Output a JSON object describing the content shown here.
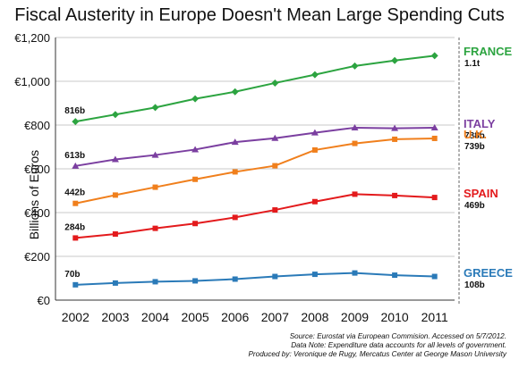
{
  "chart_data": {
    "type": "line",
    "title": "Fiscal Austerity in Europe Doesn't Mean Large Spending Cuts",
    "ylabel": "Billions of Euros",
    "xlabel": "",
    "x": [
      "2002",
      "2003",
      "2004",
      "2005",
      "2006",
      "2007",
      "2008",
      "2009",
      "2010",
      "2011"
    ],
    "ylim": [
      0,
      1200
    ],
    "yticks": [
      0,
      200,
      400,
      600,
      800,
      1000,
      1200
    ],
    "ytick_labels": [
      "€0",
      "€200",
      "€400",
      "€600",
      "€800",
      "€1,000",
      "€1,200"
    ],
    "grid": true,
    "series": [
      {
        "name": "FRANCE",
        "color": "#2ca440",
        "marker": "diamond",
        "values": [
          816,
          848,
          880,
          920,
          952,
          992,
          1030,
          1070,
          1095,
          1117
        ],
        "start_label": "816b",
        "end_label": "1.1t"
      },
      {
        "name": "ITALY",
        "color": "#7b3fa0",
        "marker": "triangle",
        "values": [
          613,
          643,
          663,
          688,
          722,
          740,
          765,
          788,
          785,
          788
        ],
        "start_label": "613b",
        "end_label": "788b"
      },
      {
        "name": "U.K.",
        "color": "#f07f1c",
        "marker": "square",
        "values": [
          442,
          480,
          516,
          552,
          586,
          614,
          686,
          716,
          735,
          739
        ],
        "start_label": "442b",
        "end_label": "739b"
      },
      {
        "name": "SPAIN",
        "color": "#e31a1c",
        "marker": "square",
        "values": [
          284,
          302,
          328,
          350,
          378,
          412,
          450,
          484,
          478,
          469
        ],
        "start_label": "284b",
        "end_label": "469b"
      },
      {
        "name": "GREECE",
        "color": "#2a7ab8",
        "marker": "square",
        "values": [
          70,
          78,
          84,
          88,
          96,
          108,
          118,
          124,
          114,
          108
        ],
        "start_label": "70b",
        "end_label": "108b"
      }
    ]
  },
  "footer": {
    "source": "Source: Eurostat via European Commision. Accessed on 5/7/2012.",
    "note": "Data Note: Expenditure data accounts for all levels of government.",
    "credit": "Produced by: Veronique de Rugy, Mercatus Center at George Mason University"
  }
}
